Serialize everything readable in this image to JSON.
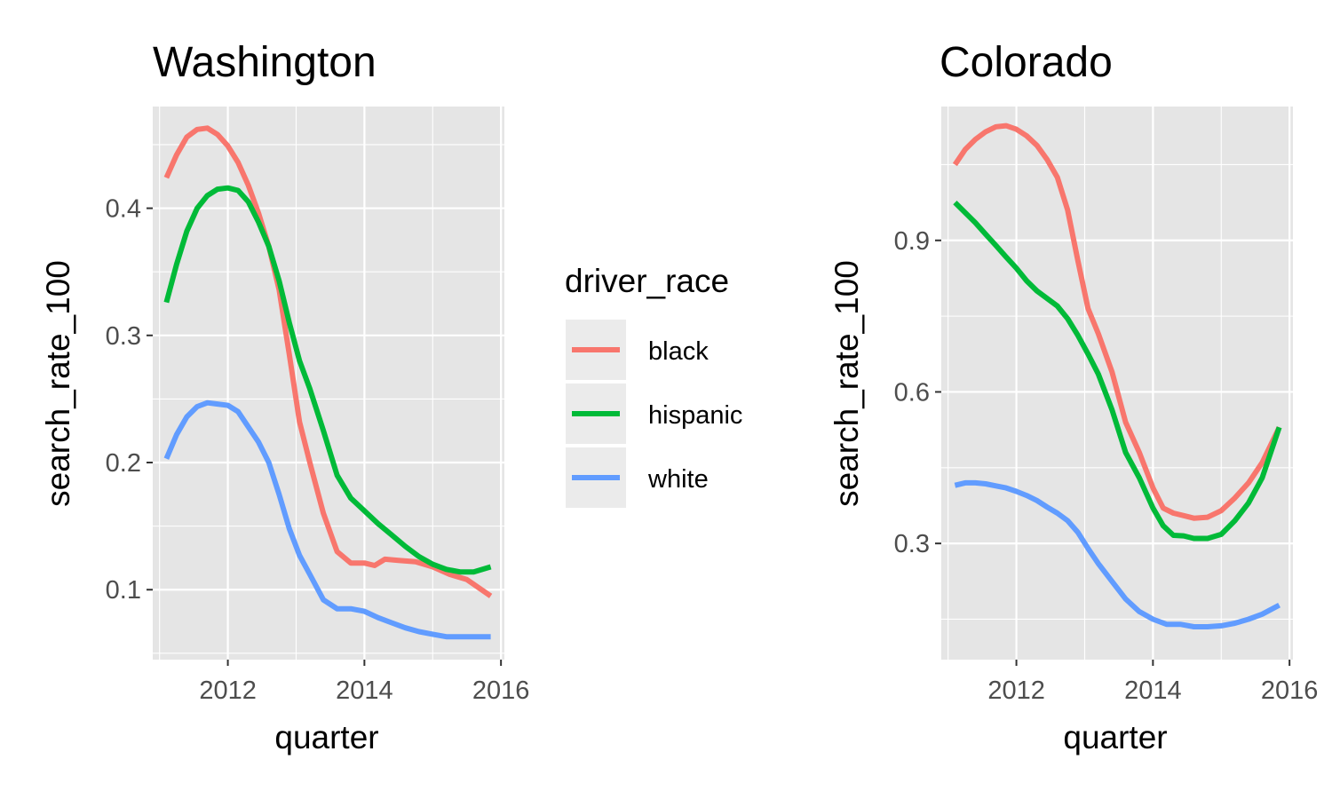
{
  "legend": {
    "title": "driver_race",
    "entries": [
      {
        "label": "black",
        "color": "#F8766D"
      },
      {
        "label": "hispanic",
        "color": "#00BA38"
      },
      {
        "label": "white",
        "color": "#619CFF"
      }
    ],
    "placement": "right-center"
  },
  "chart_data": [
    {
      "type": "line",
      "title": "Washington",
      "xlabel": "quarter",
      "ylabel": "search_rate_100",
      "xlim": [
        2010.9,
        2016.05
      ],
      "ylim": [
        0.045,
        0.48
      ],
      "x_ticks": [
        2012,
        2014,
        2016
      ],
      "x_tick_labels": [
        "2012",
        "2014",
        "2016"
      ],
      "y_ticks": [
        0.1,
        0.2,
        0.3,
        0.4
      ],
      "y_tick_labels": [
        "0.1",
        "0.2",
        "0.3",
        "0.4"
      ],
      "grid": true,
      "series": [
        {
          "name": "black",
          "color": "#F8766D",
          "x": [
            2011.1,
            2011.25,
            2011.4,
            2011.55,
            2011.7,
            2011.85,
            2012.0,
            2012.15,
            2012.3,
            2012.45,
            2012.6,
            2012.75,
            2012.9,
            2013.05,
            2013.2,
            2013.4,
            2013.6,
            2013.8,
            2014.0,
            2014.15,
            2014.3,
            2014.5,
            2014.75,
            2015.0,
            2015.25,
            2015.5,
            2015.85
          ],
          "y": [
            0.424,
            0.442,
            0.456,
            0.462,
            0.463,
            0.458,
            0.449,
            0.436,
            0.418,
            0.396,
            0.37,
            0.336,
            0.285,
            0.232,
            0.2,
            0.16,
            0.13,
            0.121,
            0.121,
            0.119,
            0.124,
            0.123,
            0.122,
            0.118,
            0.112,
            0.108,
            0.095
          ]
        },
        {
          "name": "hispanic",
          "color": "#00BA38",
          "x": [
            2011.1,
            2011.25,
            2011.4,
            2011.55,
            2011.7,
            2011.85,
            2012.0,
            2012.15,
            2012.3,
            2012.45,
            2012.6,
            2012.75,
            2012.9,
            2013.05,
            2013.2,
            2013.4,
            2013.6,
            2013.8,
            2014.0,
            2014.2,
            2014.4,
            2014.6,
            2014.8,
            2015.0,
            2015.2,
            2015.4,
            2015.6,
            2015.85
          ],
          "y": [
            0.326,
            0.356,
            0.382,
            0.4,
            0.41,
            0.415,
            0.416,
            0.414,
            0.405,
            0.389,
            0.37,
            0.343,
            0.31,
            0.28,
            0.258,
            0.225,
            0.19,
            0.172,
            0.162,
            0.152,
            0.143,
            0.134,
            0.126,
            0.12,
            0.116,
            0.114,
            0.114,
            0.118
          ]
        },
        {
          "name": "white",
          "color": "#619CFF",
          "x": [
            2011.1,
            2011.25,
            2011.4,
            2011.55,
            2011.7,
            2011.85,
            2012.0,
            2012.15,
            2012.3,
            2012.45,
            2012.6,
            2012.75,
            2012.9,
            2013.05,
            2013.2,
            2013.4,
            2013.6,
            2013.8,
            2014.0,
            2014.2,
            2014.4,
            2014.6,
            2014.8,
            2015.0,
            2015.2,
            2015.4,
            2015.6,
            2015.85
          ],
          "y": [
            0.203,
            0.222,
            0.236,
            0.244,
            0.247,
            0.246,
            0.245,
            0.24,
            0.228,
            0.216,
            0.2,
            0.175,
            0.148,
            0.127,
            0.112,
            0.092,
            0.085,
            0.085,
            0.083,
            0.078,
            0.074,
            0.07,
            0.067,
            0.065,
            0.063,
            0.063,
            0.063,
            0.063
          ]
        }
      ]
    },
    {
      "type": "line",
      "title": "Colorado",
      "xlabel": "quarter",
      "ylabel": "search_rate_100",
      "xlim": [
        2010.9,
        2016.05
      ],
      "ylim": [
        0.07,
        1.165
      ],
      "x_ticks": [
        2012,
        2014,
        2016
      ],
      "x_tick_labels": [
        "2012",
        "2014",
        "2016"
      ],
      "y_ticks": [
        0.3,
        0.6,
        0.9
      ],
      "y_tick_labels": [
        "0.3",
        "0.6",
        "0.9"
      ],
      "grid": true,
      "series": [
        {
          "name": "black",
          "color": "#F8766D",
          "x": [
            2011.1,
            2011.25,
            2011.4,
            2011.55,
            2011.7,
            2011.85,
            2012.0,
            2012.15,
            2012.3,
            2012.45,
            2012.6,
            2012.75,
            2012.9,
            2013.05,
            2013.2,
            2013.4,
            2013.6,
            2013.8,
            2014.0,
            2014.15,
            2014.3,
            2014.45,
            2014.6,
            2014.8,
            2015.0,
            2015.2,
            2015.4,
            2015.6,
            2015.85
          ],
          "y": [
            1.05,
            1.08,
            1.1,
            1.115,
            1.125,
            1.127,
            1.12,
            1.107,
            1.088,
            1.06,
            1.025,
            0.96,
            0.86,
            0.765,
            0.715,
            0.64,
            0.54,
            0.48,
            0.41,
            0.37,
            0.36,
            0.355,
            0.35,
            0.352,
            0.365,
            0.39,
            0.42,
            0.46,
            0.53
          ]
        },
        {
          "name": "hispanic",
          "color": "#00BA38",
          "x": [
            2011.1,
            2011.25,
            2011.4,
            2011.55,
            2011.7,
            2011.85,
            2012.0,
            2012.15,
            2012.3,
            2012.45,
            2012.6,
            2012.75,
            2012.9,
            2013.05,
            2013.2,
            2013.4,
            2013.6,
            2013.8,
            2014.0,
            2014.15,
            2014.3,
            2014.45,
            2014.6,
            2014.8,
            2015.0,
            2015.2,
            2015.4,
            2015.6,
            2015.85
          ],
          "y": [
            0.975,
            0.955,
            0.935,
            0.912,
            0.89,
            0.867,
            0.845,
            0.82,
            0.8,
            0.785,
            0.77,
            0.745,
            0.712,
            0.675,
            0.635,
            0.565,
            0.48,
            0.43,
            0.37,
            0.335,
            0.316,
            0.315,
            0.31,
            0.31,
            0.318,
            0.345,
            0.38,
            0.43,
            0.53
          ]
        },
        {
          "name": "white",
          "color": "#619CFF",
          "x": [
            2011.1,
            2011.25,
            2011.4,
            2011.55,
            2011.7,
            2011.85,
            2012.0,
            2012.15,
            2012.3,
            2012.45,
            2012.6,
            2012.75,
            2012.9,
            2013.05,
            2013.2,
            2013.4,
            2013.6,
            2013.8,
            2014.0,
            2014.2,
            2014.4,
            2014.6,
            2014.8,
            2015.0,
            2015.2,
            2015.4,
            2015.6,
            2015.85
          ],
          "y": [
            0.415,
            0.42,
            0.42,
            0.418,
            0.414,
            0.41,
            0.403,
            0.395,
            0.385,
            0.372,
            0.36,
            0.345,
            0.322,
            0.29,
            0.26,
            0.225,
            0.19,
            0.165,
            0.15,
            0.14,
            0.14,
            0.135,
            0.135,
            0.137,
            0.142,
            0.15,
            0.16,
            0.178
          ]
        }
      ]
    }
  ]
}
